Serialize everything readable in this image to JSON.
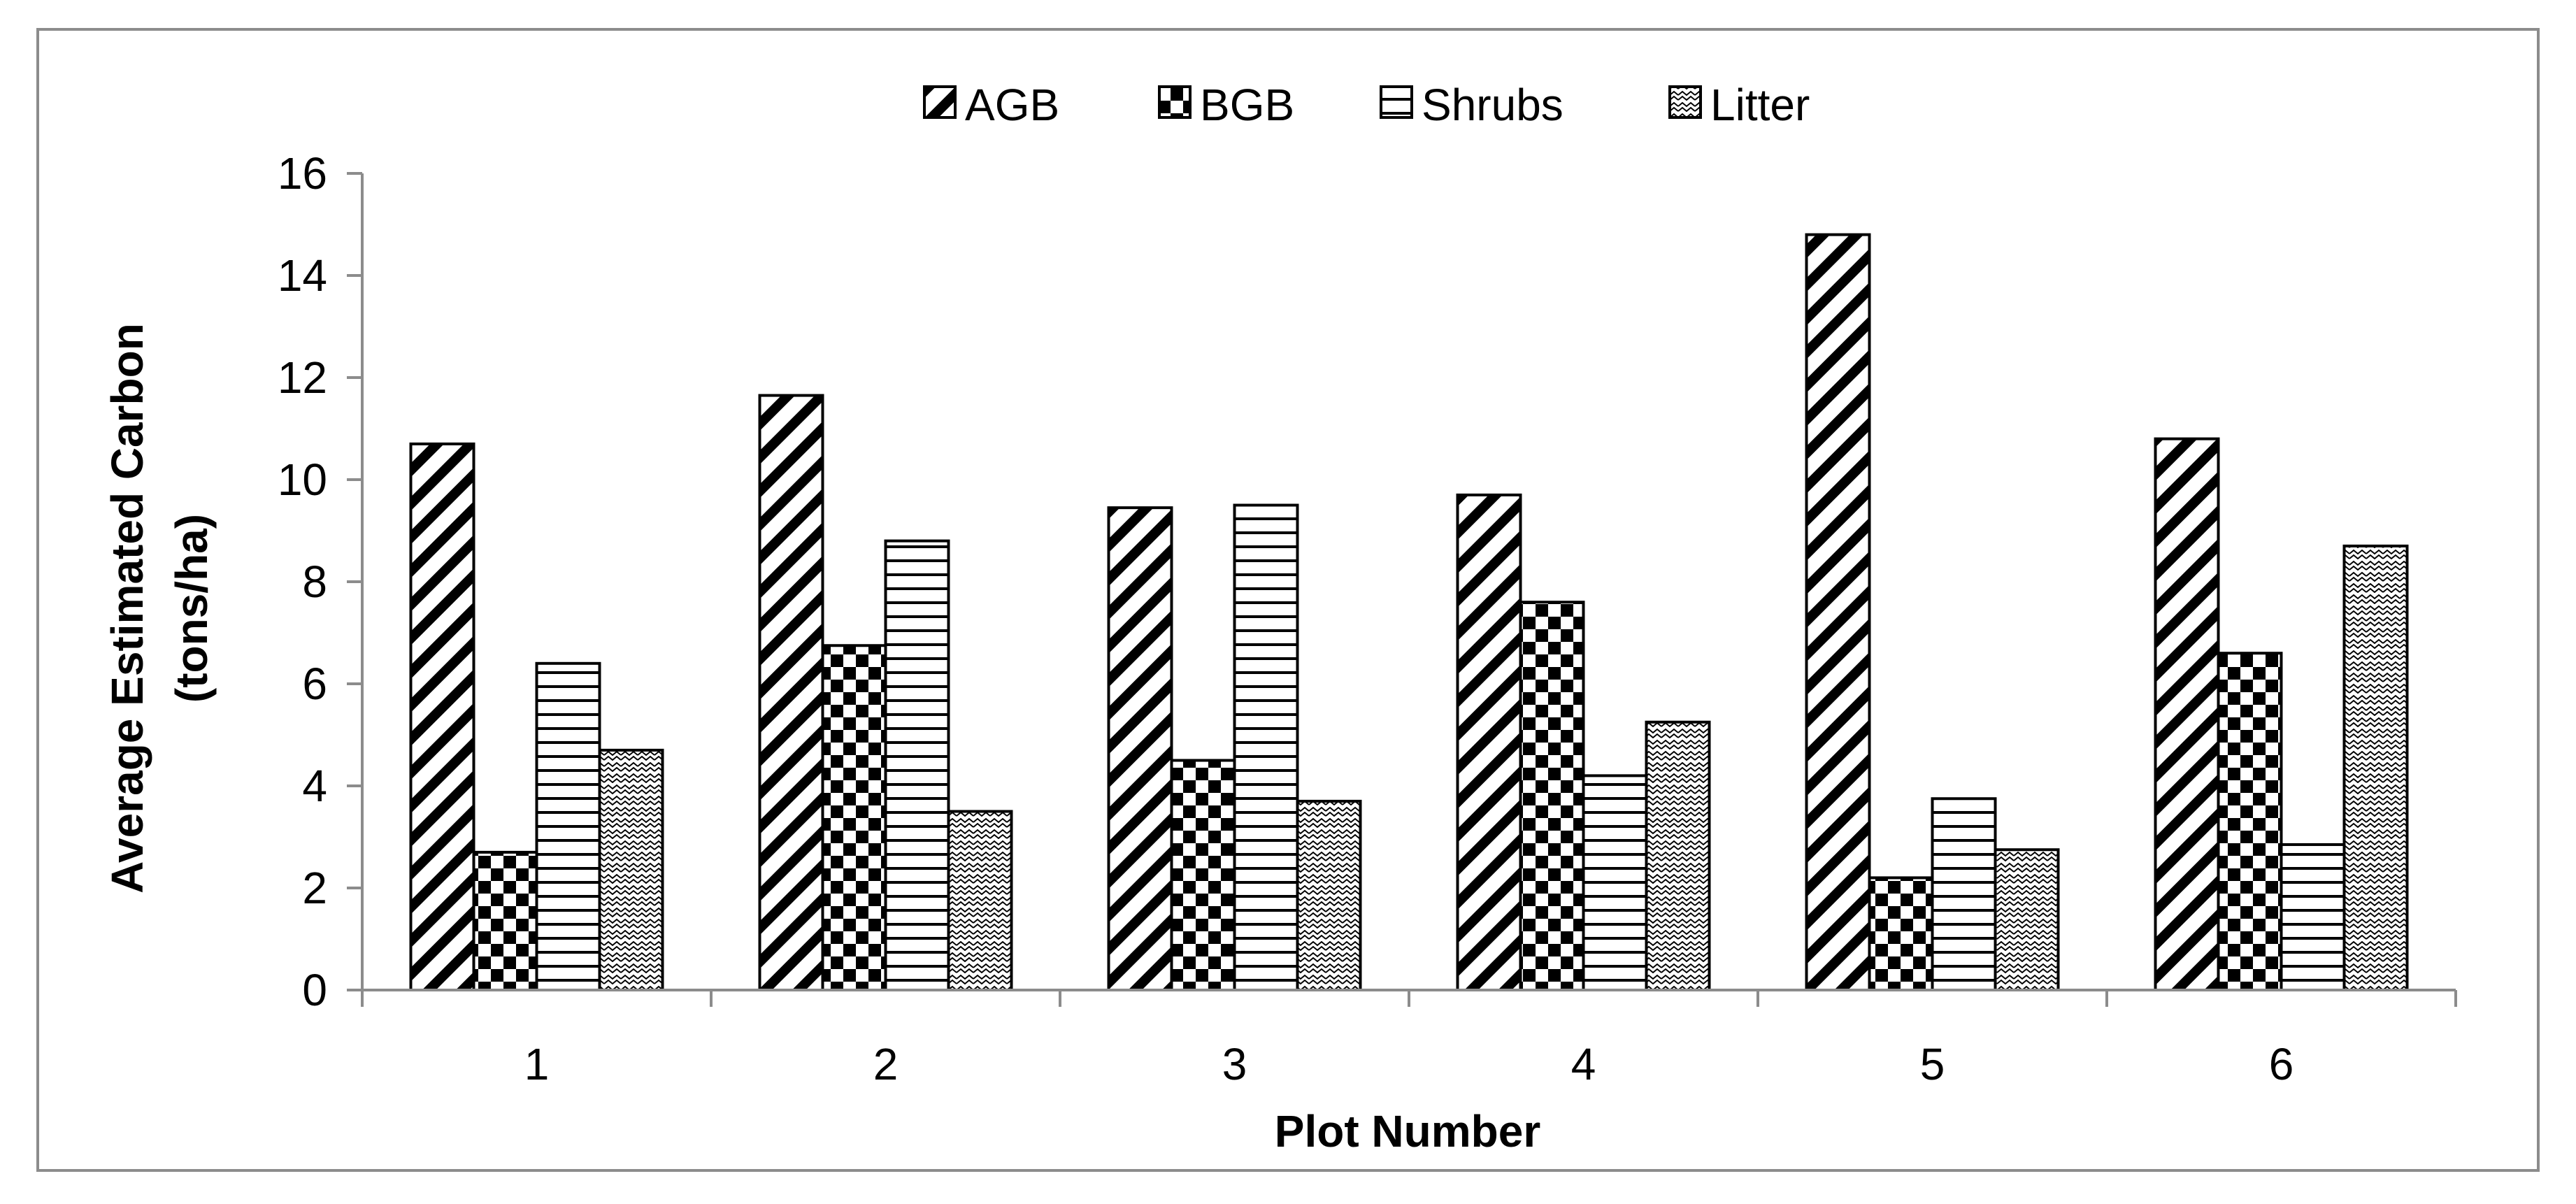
{
  "chart_data": {
    "type": "bar",
    "title": "",
    "xlabel": "Plot Number",
    "ylabel_line1": "Average Estimated Carbon",
    "ylabel_line2": "(tons/ha)",
    "categories": [
      "1",
      "2",
      "3",
      "4",
      "5",
      "6"
    ],
    "ylim": [
      0,
      16
    ],
    "yticks": [
      "0",
      "2",
      "4",
      "6",
      "8",
      "10",
      "12",
      "14",
      "16"
    ],
    "grid": false,
    "legend_position": "top-center",
    "series": [
      {
        "name": "AGB",
        "pattern": "diagonal-stripes-icon",
        "values": [
          10.7,
          11.65,
          9.45,
          9.7,
          14.8,
          10.8
        ]
      },
      {
        "name": "BGB",
        "pattern": "checkerboard-icon",
        "values": [
          2.7,
          6.75,
          4.5,
          7.6,
          2.2,
          6.6
        ]
      },
      {
        "name": "Shrubs",
        "pattern": "horizontal-stripes-icon",
        "values": [
          6.4,
          8.8,
          9.5,
          4.2,
          3.75,
          2.85
        ]
      },
      {
        "name": "Litter",
        "pattern": "wave-icon",
        "values": [
          4.7,
          3.5,
          3.7,
          5.25,
          2.75,
          8.7
        ]
      }
    ],
    "colors": {
      "ink": "#000000",
      "background": "#ffffff",
      "axis": "#8c8c8c",
      "frame": "#8c8c8c"
    }
  }
}
